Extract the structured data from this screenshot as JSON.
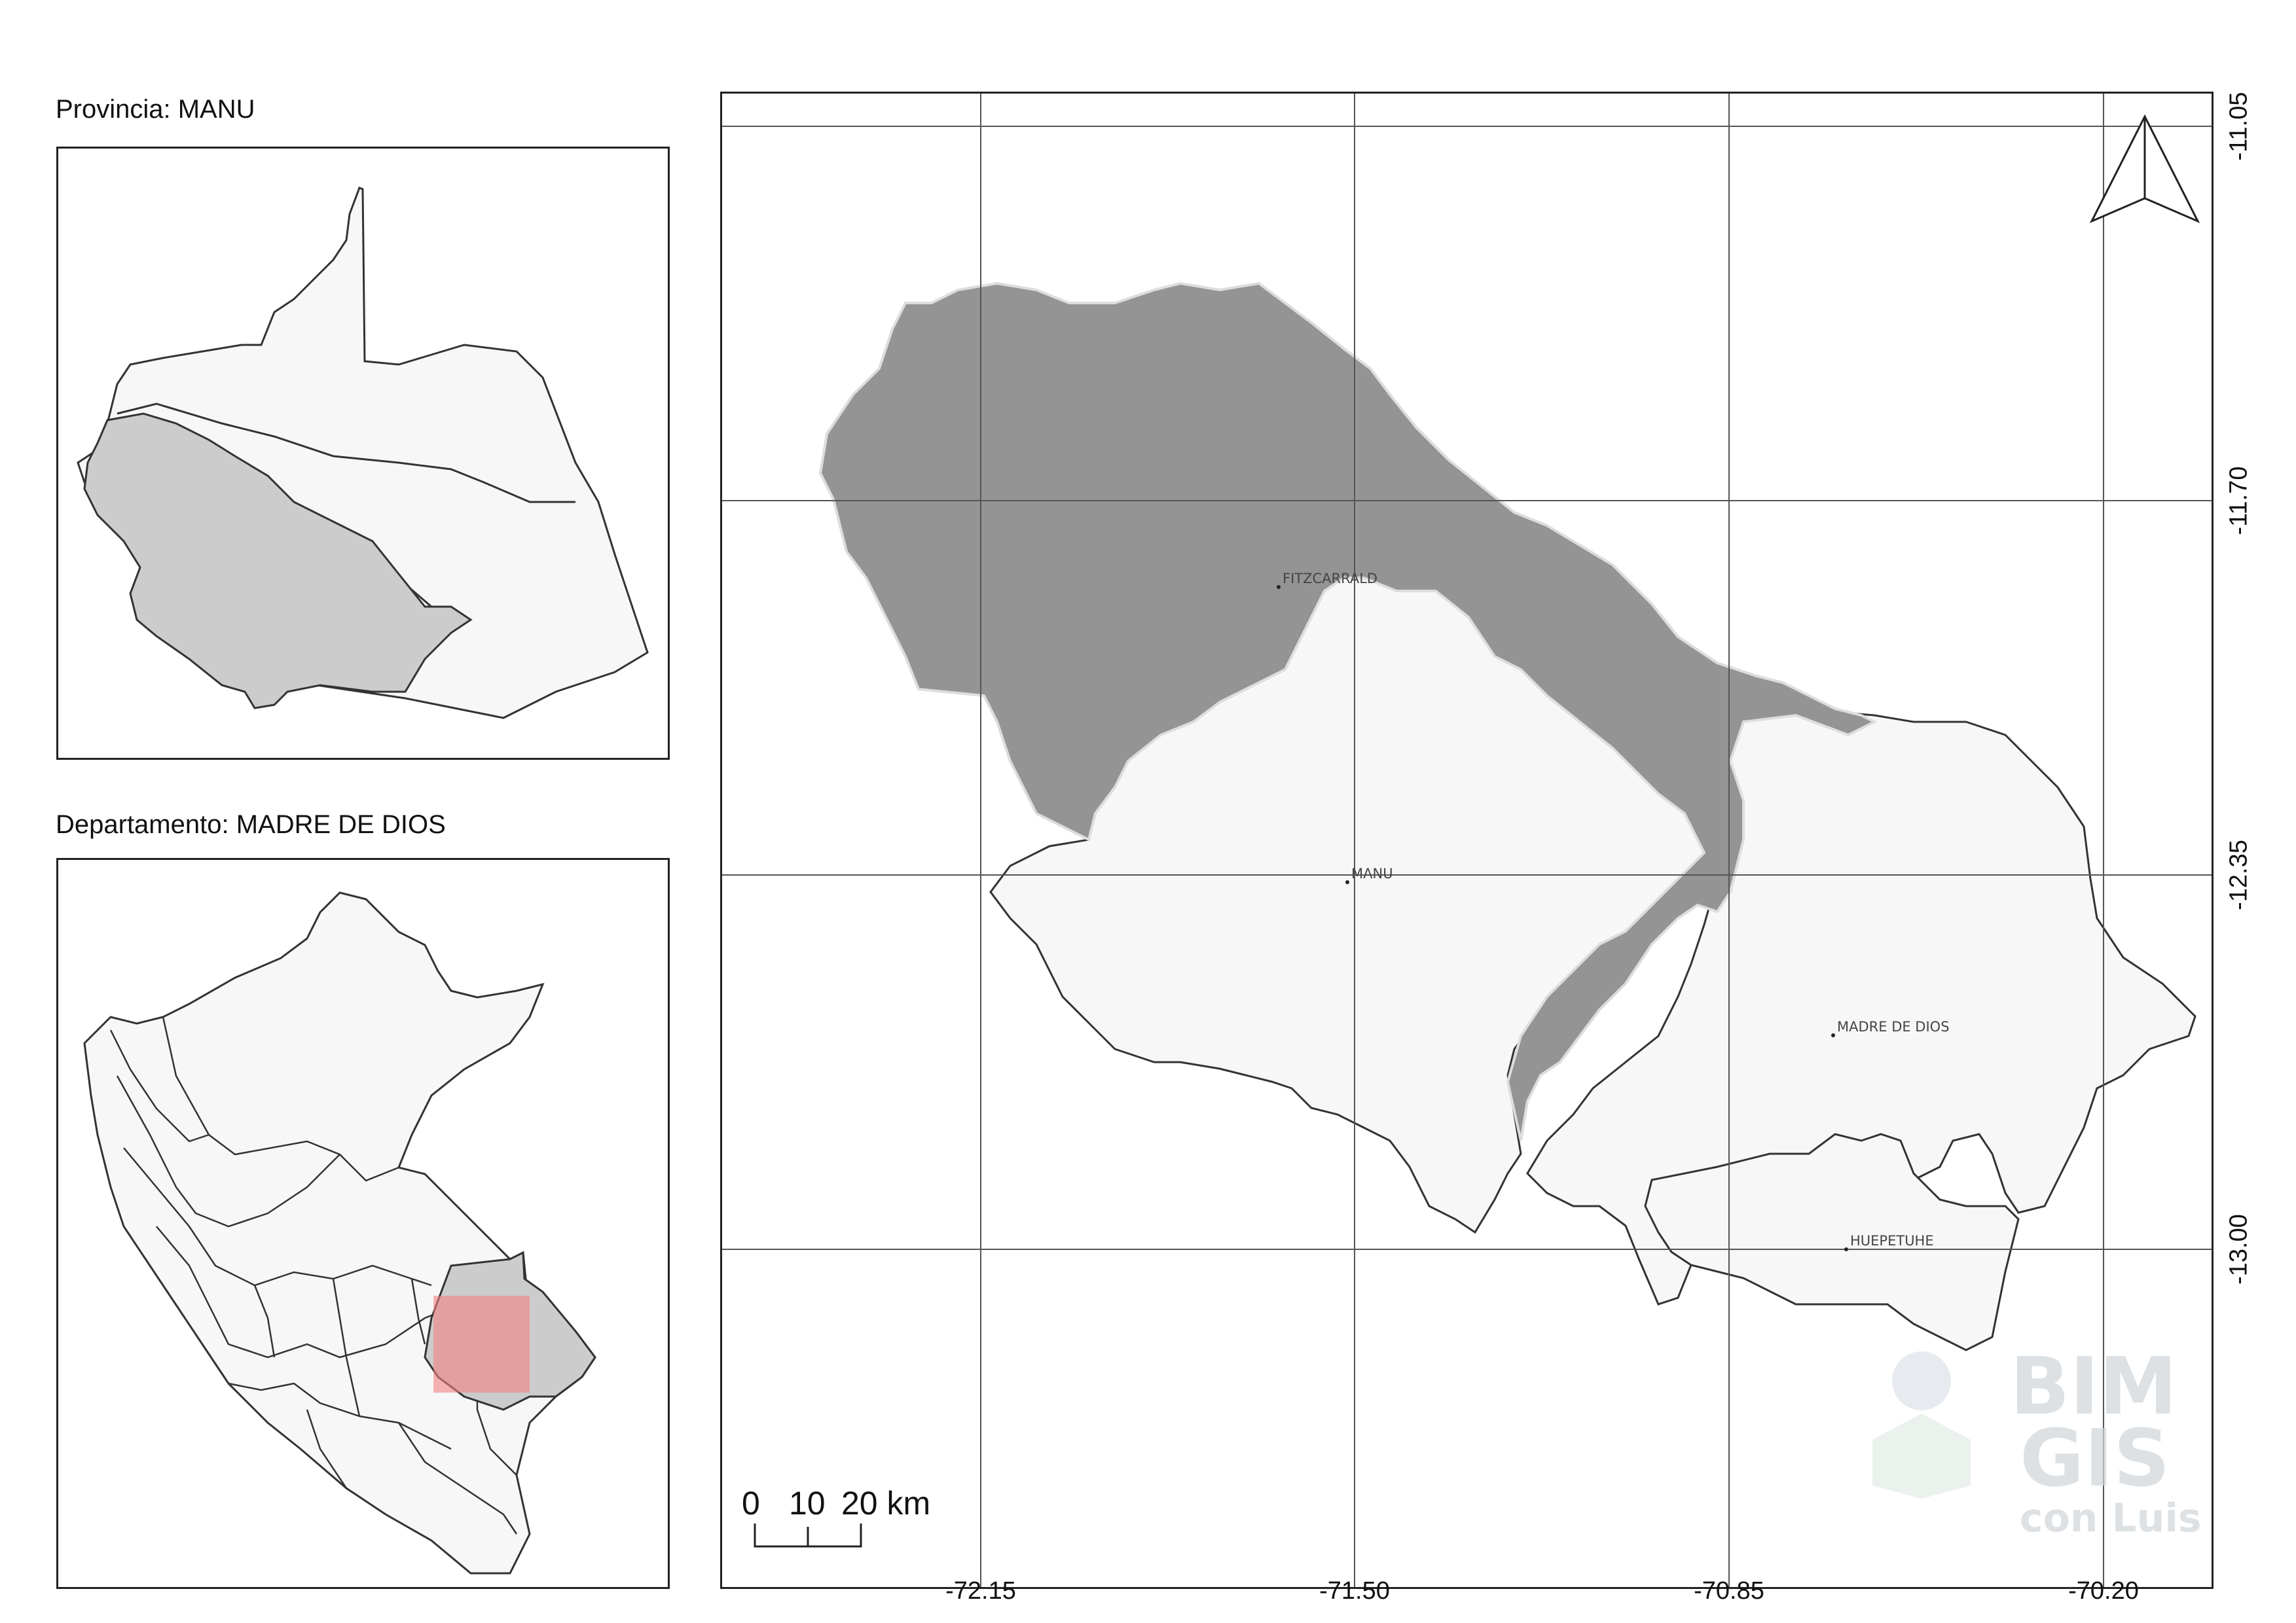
{
  "insets": {
    "province_title": "Provincia: MANU",
    "department_title": "Departamento: MADRE DE DIOS"
  },
  "main_map": {
    "places": [
      {
        "label": "FITZCARRALD"
      },
      {
        "label": "MANU"
      },
      {
        "label": "MADRE DE DIOS"
      },
      {
        "label": "HUEPETUHE"
      }
    ],
    "x_ticks": [
      "-72.15",
      "-71.50",
      "-70.85",
      "-70.20"
    ],
    "y_ticks": [
      "-11.05",
      "-11.70",
      "-12.35",
      "-13.00"
    ],
    "scale_bar": {
      "labels": [
        "0",
        "10",
        "20 km"
      ]
    },
    "north_arrow": "north-arrow-icon",
    "colors": {
      "highlight": "#949494",
      "region_fill": "#f7f7f7",
      "inset_highlight": "#cccccc",
      "extent_box": "#f08080"
    }
  },
  "watermark": {
    "line1": "BIM",
    "line2": "GIS",
    "line3": "con Luis"
  }
}
